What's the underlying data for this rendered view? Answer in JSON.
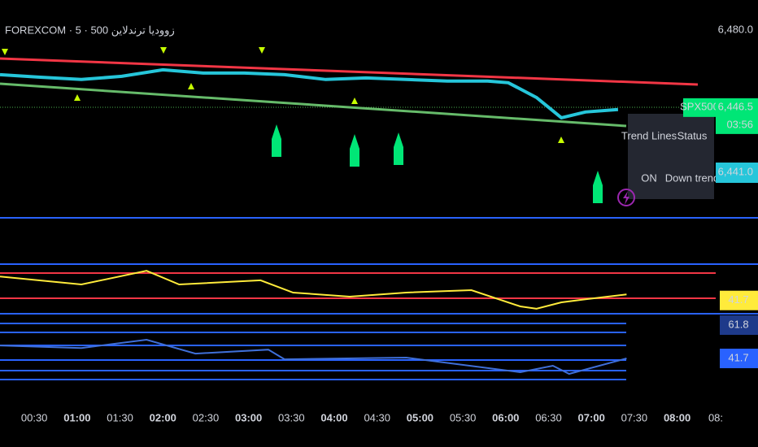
{
  "title": "FOREXCOM · 5 · 500 زووديا ترندلاين",
  "chart_data": [
    {
      "type": "line",
      "x": [
        0.1,
        0.57,
        1.05,
        1.52,
        2.0,
        2.47,
        2.95,
        3.42,
        3.9,
        4.37,
        4.84,
        5.32,
        5.79,
        6.03,
        6.36,
        6.65,
        6.93,
        7.31
      ],
      "series": [
        {
          "color": "#26c6da",
          "values": [
            6460.6,
            6459.5,
            6458.5,
            6459.9,
            6462.7,
            6461.3,
            6461.3,
            6460.6,
            6458.5,
            6459.2,
            6458.5,
            6457.8,
            6457.8,
            6457.1,
            6450.7,
            6441.9,
            6444.4,
            6445.5
          ]
        }
      ],
      "xlim": [
        0.1,
        8.45
      ],
      "xticks": [
        {
          "value": 0.5,
          "label": "00:30"
        },
        {
          "value": 1.0,
          "label": "01:00"
        },
        {
          "value": 1.5,
          "label": "01:30"
        },
        {
          "value": 2.0,
          "label": "02:00"
        },
        {
          "value": 2.5,
          "label": "02:30"
        },
        {
          "value": 3.0,
          "label": "03:00"
        },
        {
          "value": 3.5,
          "label": "03:30"
        },
        {
          "value": 4.0,
          "label": "04:00"
        },
        {
          "value": 4.5,
          "label": "04:30"
        },
        {
          "value": 5.0,
          "label": "05:00"
        },
        {
          "value": 5.5,
          "label": "05:30"
        },
        {
          "value": 6.0,
          "label": "06:00"
        },
        {
          "value": 6.5,
          "label": "06:30"
        },
        {
          "value": 7.0,
          "label": "07:00"
        },
        {
          "value": 7.5,
          "label": "07:30"
        },
        {
          "value": 8.0,
          "label": "08:00"
        },
        {
          "value": 8.45,
          "label": "08:"
        }
      ],
      "ylim": [
        6398.5,
        6493
      ],
      "yticks": [
        {
          "value": 6480,
          "label": "6,480.0"
        }
      ],
      "symbol": "SPX500",
      "last_price": {
        "value": 6446.5,
        "label": "6,446.5"
      },
      "countdown": "03:56",
      "second_price": {
        "value": 6441.0,
        "label": "6,441.0"
      }
    },
    {
      "type": "line",
      "x": [
        0.1,
        1.05,
        1.81,
        2.19,
        3.14,
        3.52,
        4.18,
        4.84,
        5.6,
        6.17,
        6.36,
        6.65,
        6.93,
        7.41
      ],
      "series": [
        {
          "color": "#ffeb3b",
          "values": [
            67,
            58.6,
            73,
            58.6,
            62.9,
            50,
            45.7,
            50,
            52.6,
            35.4,
            32.9,
            39.7,
            43,
            48
          ]
        }
      ],
      "ylim": [
        20,
        80
      ],
      "last_value": 41.7
    },
    {
      "type": "line",
      "x": [
        0.1,
        1.05,
        1.81,
        2.38,
        3.23,
        3.42,
        4.84,
        6.17,
        6.55,
        6.74,
        7.41
      ],
      "series": [
        {
          "color": "#3f6fd8",
          "values": [
            49.5,
            48,
            53,
            44.6,
            47,
            41.2,
            42.2,
            33.4,
            37.3,
            32.4,
            41.7
          ]
        }
      ],
      "ylim": [
        27.5,
        67.7
      ],
      "level_labels": [
        61.8,
        41.7
      ]
    }
  ],
  "table": {
    "header": [
      "Trend Lines",
      "Status"
    ],
    "rows": [
      [
        "ON",
        "Down trend"
      ]
    ]
  }
}
